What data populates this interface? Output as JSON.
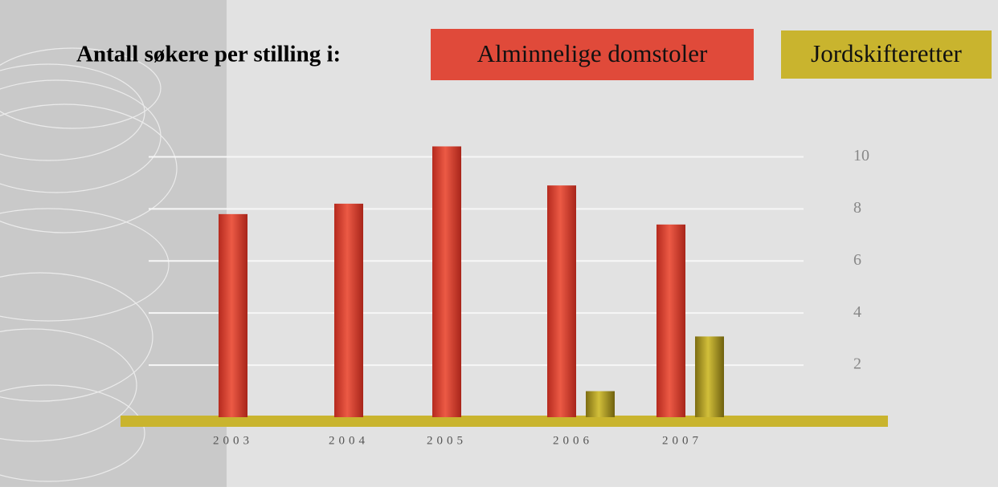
{
  "chart_data": {
    "type": "bar",
    "title": "Antall søkere per stilling i:",
    "categories": [
      "2003",
      "2004",
      "2005",
      "2006",
      "2007"
    ],
    "series": [
      {
        "name": "Alminnelige domstoler",
        "color": "#e04a3a",
        "values": [
          7.8,
          8.2,
          10.4,
          8.9,
          7.4
        ]
      },
      {
        "name": "Jordskifteretter",
        "color": "#c9b42e",
        "values": [
          null,
          null,
          null,
          1.0,
          3.1
        ]
      }
    ],
    "ylim": [
      0,
      11
    ],
    "yticks": [
      2,
      4,
      6,
      8,
      10
    ],
    "grid": true
  }
}
